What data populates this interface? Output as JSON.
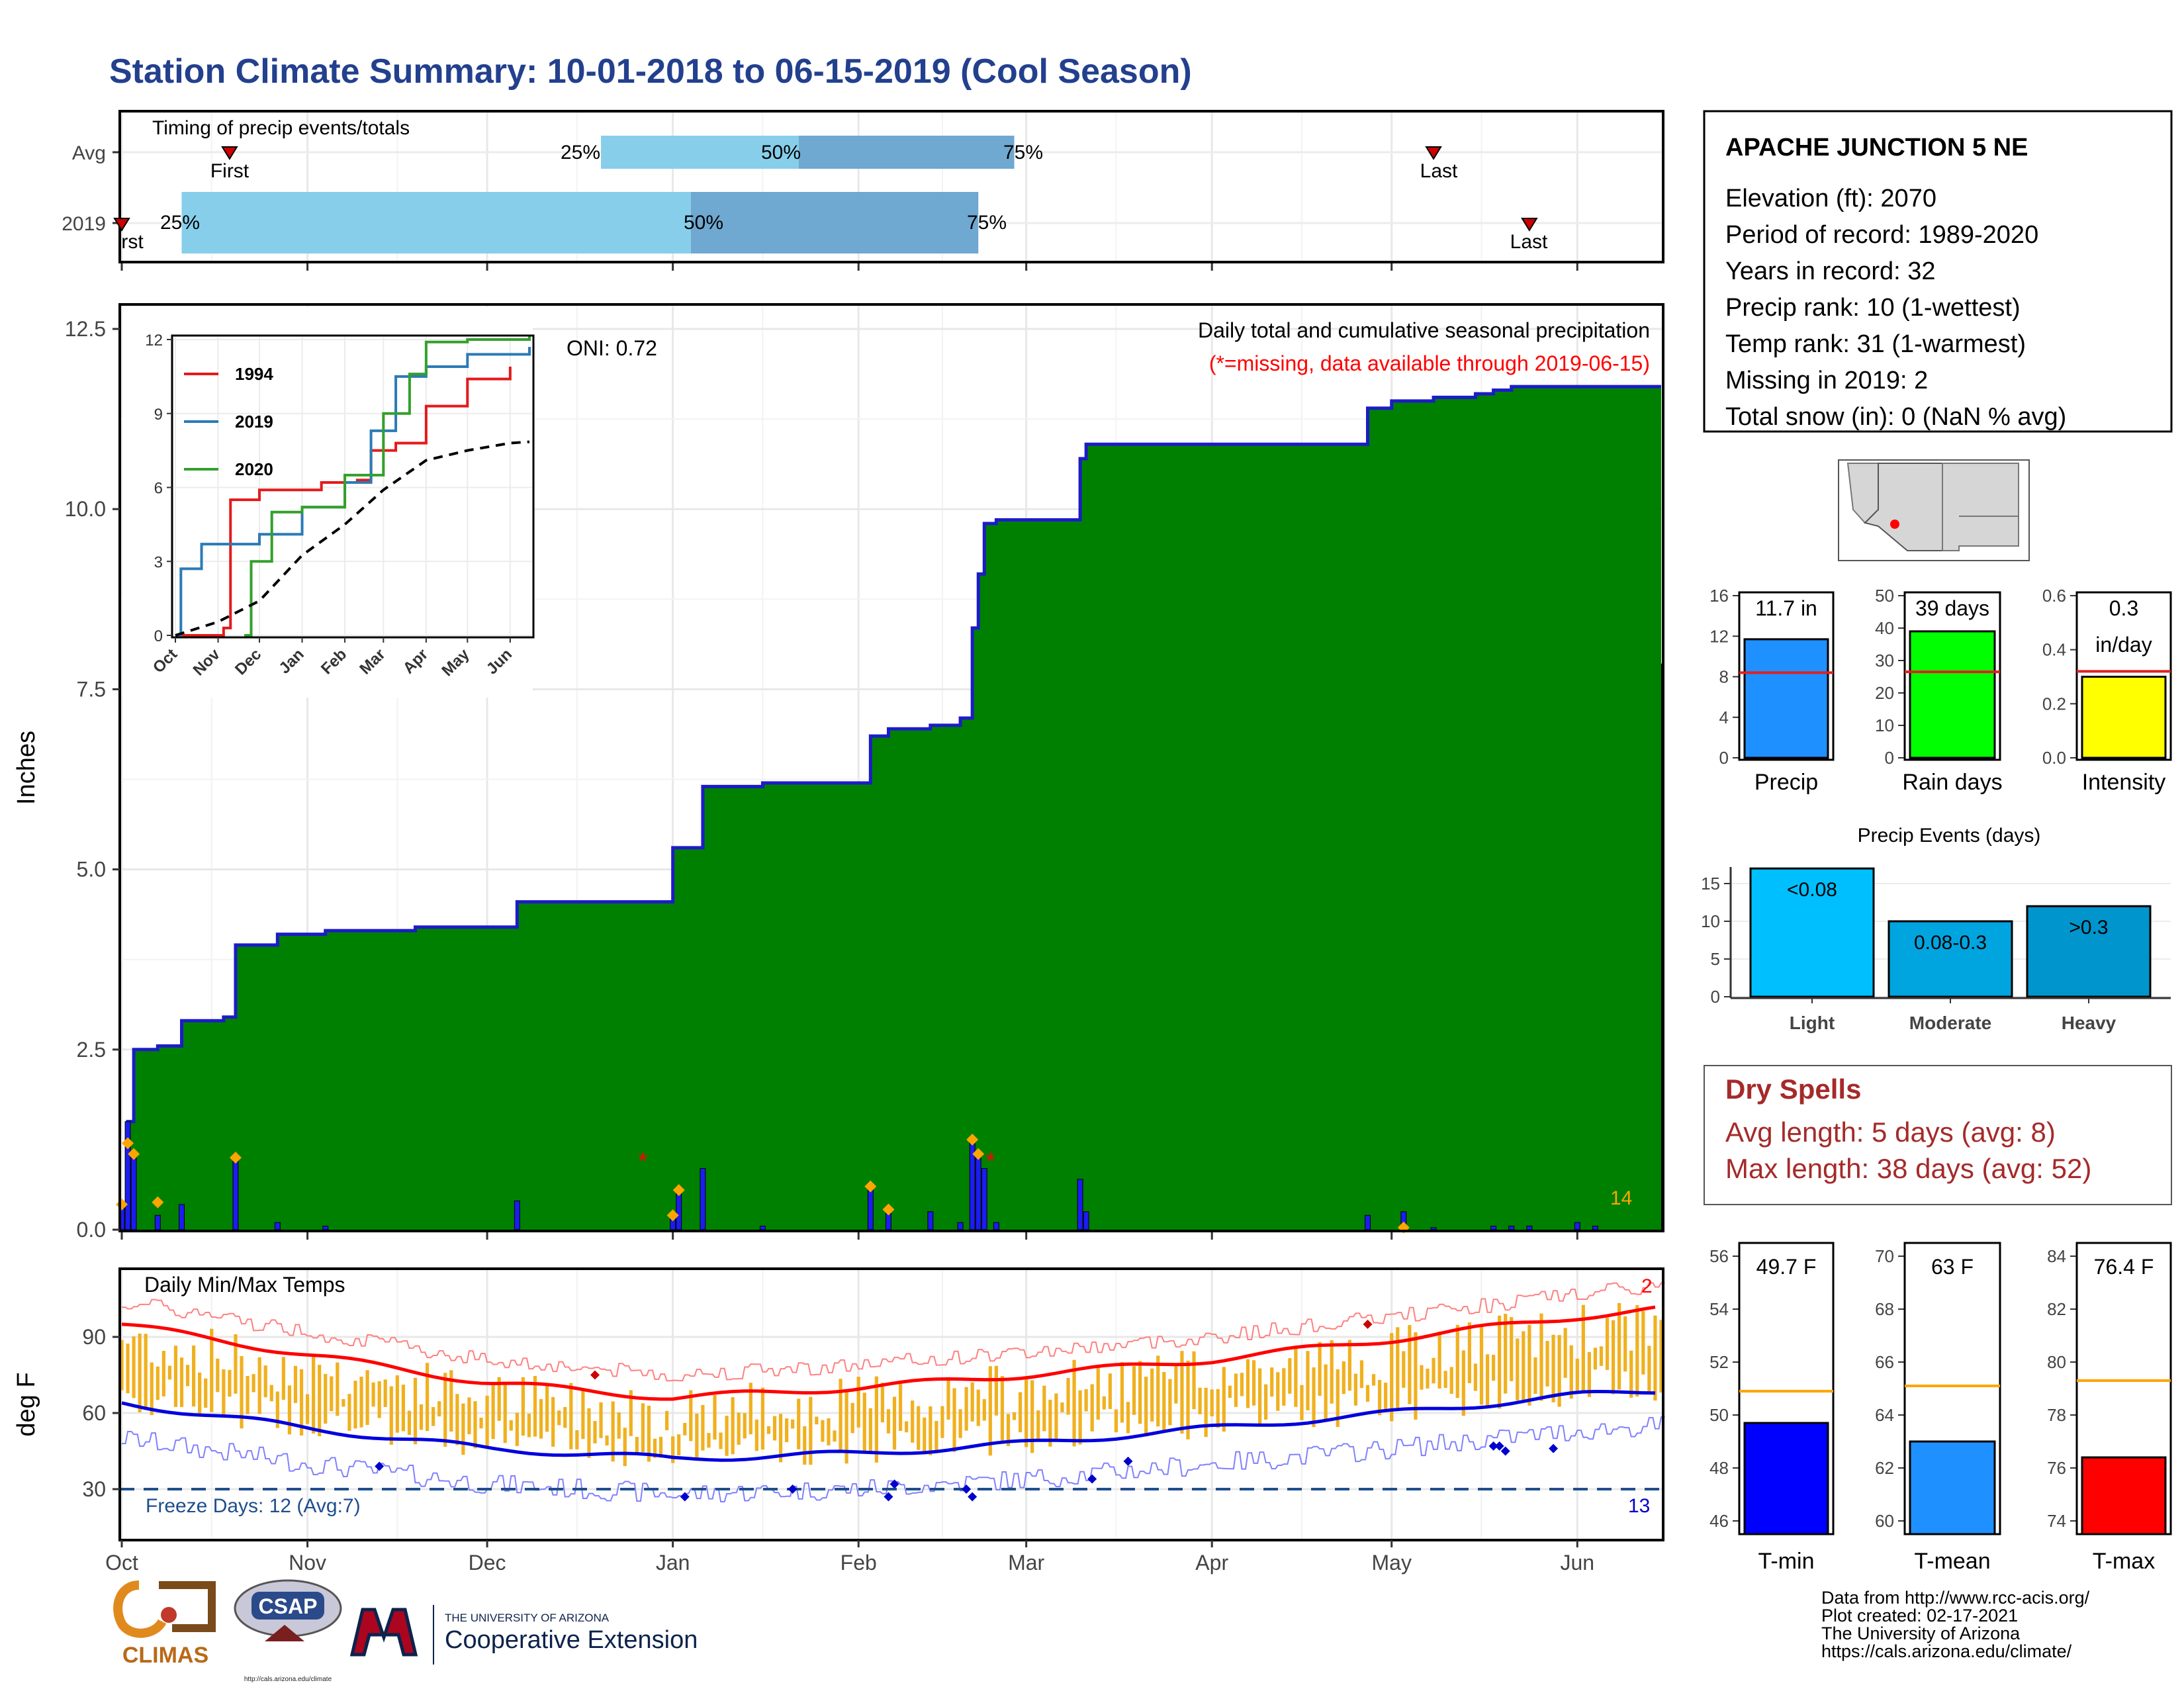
{
  "page_title": "Station Climate Summary: 10-01-2018 to 06-15-2019 (Cool Season)",
  "colors": {
    "title": "#23408e",
    "precip_fill": "#008000",
    "climo_fill": "#e0e0e0",
    "cumulative_line": "#1c1cc8",
    "daily_bar": "#1c1cf0",
    "quartile_light": "#87ceeb",
    "quartile_dark": "#6fa8d0",
    "temp_bar": "#f0b01f",
    "tmax_avg": "#ff0000",
    "tmin_avg": "#0000dd",
    "dry_spells": "#a52a2a",
    "tmin_bar": "#0000ff",
    "tmean_bar": "#1e90ff",
    "tmax_bar": "#ff0000",
    "light_bar": "#00bfff",
    "moderate_bar": "#00a5e0",
    "heavy_bar": "#0095cc"
  },
  "timing": {
    "title": "Timing of precip events/totals",
    "rows": [
      "Avg",
      "2019"
    ],
    "avg": {
      "first": "First",
      "last": "Last",
      "q25": "25%",
      "q50": "50%",
      "q75": "75%"
    },
    "y2019": {
      "first": "rst",
      "last": "Last",
      "q25": "25%",
      "q50": "50%",
      "q75": "75%"
    }
  },
  "months": [
    "Oct",
    "Nov",
    "Dec",
    "Jan",
    "Feb",
    "Mar",
    "Apr",
    "May",
    "Jun"
  ],
  "precip_panel": {
    "ylabel": "Inches",
    "yticks": [
      "0.0",
      "2.5",
      "5.0",
      "7.5",
      "10.0",
      "12.5"
    ],
    "title": "Daily total and cumulative seasonal precipitation",
    "missing_note": "(*=missing, data available through 2019-06-15)",
    "oni": "ONI: 0.72",
    "count": "14"
  },
  "inset": {
    "yticks": [
      "0",
      "3",
      "6",
      "9",
      "12"
    ],
    "months": [
      "Oct",
      "Nov",
      "Dec",
      "Jan",
      "Feb",
      "Mar",
      "Apr",
      "May",
      "Jun"
    ],
    "legend": [
      {
        "name": "1994",
        "color": "#e31a1c"
      },
      {
        "name": "2019",
        "color": "#2c7bb6"
      },
      {
        "name": "2020",
        "color": "#33a02c"
      }
    ]
  },
  "temp_panel": {
    "ylabel": "deg F",
    "title": "Daily Min/Max Temps",
    "yticks": [
      "30",
      "60",
      "90"
    ],
    "freeze": "Freeze Days: 12 (Avg:7)",
    "cold_count": "13",
    "hot_count": "2"
  },
  "station": {
    "name": "APACHE JUNCTION 5 NE",
    "lines": [
      "Elevation (ft): 2070",
      "Period of record: 1989-2020",
      "Years in record: 32",
      "Precip rank: 10 (1-wettest)",
      "Temp rank: 31 (1-warmest)",
      "Missing in 2019: 2",
      "Total snow (in): 0 (NaN % avg)"
    ]
  },
  "summary_bars": [
    {
      "label": "Precip",
      "value_text": "11.7 in",
      "yticks": [
        "0",
        "4",
        "8",
        "12",
        "16"
      ],
      "color": "#1e90ff"
    },
    {
      "label": "Rain days",
      "value_text": "39 days",
      "yticks": [
        "0",
        "10",
        "20",
        "30",
        "40",
        "50"
      ],
      "color": "#00ff00"
    },
    {
      "label": "Intensity",
      "value_text": "0.3",
      "value_text2": "in/day",
      "yticks": [
        "0.0",
        "0.2",
        "0.4",
        "0.6"
      ],
      "color": "#ffff00"
    }
  ],
  "events": {
    "title": "Precip Events (days)",
    "yticks": [
      "0",
      "5",
      "10",
      "15"
    ],
    "bars": [
      {
        "label": "Light",
        "text": "<0.08"
      },
      {
        "label": "Moderate",
        "text": "0.08-0.3"
      },
      {
        "label": "Heavy",
        "text": ">0.3"
      }
    ]
  },
  "dry_spells": {
    "title": "Dry Spells",
    "avg": "Avg length: 5 days (avg: 8)",
    "max": "Max length: 38 days (avg: 52)"
  },
  "temp_bars": [
    {
      "label": "T-min",
      "value_text": "49.7 F",
      "yticks": [
        "46",
        "48",
        "50",
        "52",
        "54",
        "56"
      ]
    },
    {
      "label": "T-mean",
      "value_text": "63 F",
      "yticks": [
        "60",
        "62",
        "64",
        "66",
        "68",
        "70"
      ]
    },
    {
      "label": "T-max",
      "value_text": "76.4 F",
      "yticks": [
        "74",
        "76",
        "78",
        "80",
        "82",
        "84"
      ]
    }
  ],
  "footer": {
    "credits": [
      "Data from http://www.rcc-acis.org/",
      "Plot created: 02-17-2021",
      "The University of Arizona",
      "https://cals.arizona.edu/climate/"
    ],
    "climas": "CLIMAS",
    "csap": "CSAP",
    "csap_url": "http://cals.arizona.edu/climate",
    "ua_small": "THE UNIVERSITY OF ARIZONA",
    "ua_big": "Cooperative Extension"
  },
  "chart_data": [
    {
      "type": "bar",
      "title": "Timing of precip events/totals",
      "categories": [
        "Avg",
        "2019"
      ],
      "series": [
        {
          "name": "25%",
          "values": [
            "2018-12-20",
            "2018-10-11"
          ]
        },
        {
          "name": "50%",
          "values": [
            "2019-01-22",
            "2019-01-04"
          ]
        },
        {
          "name": "75%",
          "values": [
            "2019-02-27",
            "2019-02-21"
          ]
        },
        {
          "name": "First",
          "values": [
            "2018-10-19",
            "2018-10-01"
          ]
        },
        {
          "name": "Last",
          "values": [
            "2019-05-08",
            "2019-05-24"
          ]
        }
      ]
    },
    {
      "type": "area",
      "title": "Daily total and cumulative seasonal precipitation",
      "ylabel": "Inches",
      "ylim": [
        0,
        12.5
      ],
      "series": [
        {
          "name": "cumulative",
          "points": [
            [
              "2018-10-01",
              0
            ],
            [
              "2018-10-02",
              1.5
            ],
            [
              "2018-10-03",
              2.5
            ],
            [
              "2018-10-07",
              2.55
            ],
            [
              "2018-10-11",
              2.9
            ],
            [
              "2018-10-18",
              2.95
            ],
            [
              "2018-10-20",
              3.95
            ],
            [
              "2018-10-27",
              4.1
            ],
            [
              "2018-11-04",
              4.15
            ],
            [
              "2018-11-19",
              4.2
            ],
            [
              "2018-12-01",
              4.2
            ],
            [
              "2018-12-06",
              4.55
            ],
            [
              "2018-12-29",
              4.55
            ],
            [
              "2019-01-01",
              5.3
            ],
            [
              "2019-01-06",
              6.15
            ],
            [
              "2019-01-16",
              6.2
            ],
            [
              "2019-01-31",
              6.2
            ],
            [
              "2019-02-03",
              6.85
            ],
            [
              "2019-02-06",
              6.95
            ],
            [
              "2019-02-13",
              7.0
            ],
            [
              "2019-02-18",
              7.1
            ],
            [
              "2019-02-20",
              8.35
            ],
            [
              "2019-02-21",
              9.1
            ],
            [
              "2019-02-22",
              9.8
            ],
            [
              "2019-02-24",
              9.85
            ],
            [
              "2019-03-10",
              10.7
            ],
            [
              "2019-03-11",
              10.9
            ],
            [
              "2019-04-24",
              10.9
            ],
            [
              "2019-04-27",
              11.4
            ],
            [
              "2019-05-01",
              11.5
            ],
            [
              "2019-05-08",
              11.55
            ],
            [
              "2019-05-15",
              11.6
            ],
            [
              "2019-05-18",
              11.65
            ],
            [
              "2019-05-21",
              11.7
            ],
            [
              "2019-06-15",
              11.7
            ]
          ]
        },
        {
          "name": "average cumulative",
          "points": [
            [
              "2018-10-01",
              0
            ],
            [
              "2018-11-01",
              0.55
            ],
            [
              "2018-12-01",
              1.4
            ],
            [
              "2019-01-01",
              3.25
            ],
            [
              "2019-02-01",
              4.5
            ],
            [
              "2019-03-01",
              5.9
            ],
            [
              "2019-04-01",
              7.1
            ],
            [
              "2019-05-01",
              7.5
            ],
            [
              "2019-06-01",
              7.75
            ],
            [
              "2019-06-15",
              7.85
            ]
          ]
        }
      ]
    },
    {
      "type": "bar",
      "title": "Daily precipitation",
      "ylabel": "Inches",
      "points": [
        [
          "2018-10-01",
          0.35
        ],
        [
          "2018-10-02",
          1.5
        ],
        [
          "2018-10-03",
          1.0
        ],
        [
          "2018-10-07",
          0.2
        ],
        [
          "2018-10-11",
          0.35
        ],
        [
          "2018-10-20",
          1.0
        ],
        [
          "2018-10-27",
          0.1
        ],
        [
          "2018-11-04",
          0.05
        ],
        [
          "2018-12-06",
          0.4
        ],
        [
          "2019-01-01",
          0.2
        ],
        [
          "2019-01-02",
          0.55
        ],
        [
          "2019-01-06",
          0.85
        ],
        [
          "2019-01-16",
          0.05
        ],
        [
          "2019-02-03",
          0.6
        ],
        [
          "2019-02-06",
          0.25
        ],
        [
          "2019-02-13",
          0.25
        ],
        [
          "2019-02-18",
          0.1
        ],
        [
          "2019-02-20",
          1.2
        ],
        [
          "2019-02-21",
          1.0
        ],
        [
          "2019-02-22",
          0.85
        ],
        [
          "2019-02-24",
          0.1
        ],
        [
          "2019-03-10",
          0.7
        ],
        [
          "2019-03-11",
          0.25
        ],
        [
          "2019-04-27",
          0.2
        ],
        [
          "2019-05-03",
          0.25
        ],
        [
          "2019-05-08",
          0.03
        ],
        [
          "2019-05-18",
          0.05
        ],
        [
          "2019-05-21",
          0.05
        ],
        [
          "2019-05-24",
          0.05
        ],
        [
          "2019-06-01",
          0.1
        ],
        [
          "2019-06-04",
          0.05
        ]
      ]
    },
    {
      "type": "line",
      "title": "Cumulative precipitation inset",
      "ylim": [
        0,
        12
      ],
      "series": [
        {
          "name": "1994",
          "points": [
            [
              "2018-10-01",
              0
            ],
            [
              "2018-11-05",
              0.3
            ],
            [
              "2018-11-10",
              5.5
            ],
            [
              "2018-12-01",
              5.9
            ],
            [
              "2019-01-15",
              6.2
            ],
            [
              "2019-02-10",
              6.3
            ],
            [
              "2019-02-20",
              7.5
            ],
            [
              "2019-03-10",
              7.8
            ],
            [
              "2019-04-01",
              9.3
            ],
            [
              "2019-05-01",
              10.4
            ],
            [
              "2019-06-01",
              10.9
            ]
          ]
        },
        {
          "name": "2019",
          "points": [
            [
              "2018-10-01",
              0
            ],
            [
              "2018-10-05",
              2.7
            ],
            [
              "2018-10-20",
              3.7
            ],
            [
              "2018-12-01",
              4.1
            ],
            [
              "2019-01-01",
              5.2
            ],
            [
              "2019-02-01",
              6.2
            ],
            [
              "2019-02-20",
              8.3
            ],
            [
              "2019-03-10",
              10.5
            ],
            [
              "2019-04-01",
              10.9
            ],
            [
              "2019-05-01",
              11.4
            ],
            [
              "2019-06-15",
              11.7
            ]
          ]
        },
        {
          "name": "2020",
          "points": [
            [
              "2018-11-20",
              0
            ],
            [
              "2018-11-25",
              3.0
            ],
            [
              "2018-12-10",
              5.0
            ],
            [
              "2019-01-01",
              5.2
            ],
            [
              "2019-02-01",
              6.5
            ],
            [
              "2019-03-01",
              9.0
            ],
            [
              "2019-03-20",
              10.6
            ],
            [
              "2019-04-01",
              11.9
            ],
            [
              "2019-05-01",
              12.0
            ],
            [
              "2019-06-15",
              12.2
            ]
          ]
        },
        {
          "name": "average",
          "points": [
            [
              "2018-10-01",
              0
            ],
            [
              "2018-11-01",
              0.55
            ],
            [
              "2018-12-01",
              1.4
            ],
            [
              "2019-01-01",
              3.25
            ],
            [
              "2019-02-01",
              4.5
            ],
            [
              "2019-03-01",
              5.9
            ],
            [
              "2019-04-01",
              7.1
            ],
            [
              "2019-05-01",
              7.5
            ],
            [
              "2019-06-01",
              7.8
            ],
            [
              "2019-06-15",
              7.85
            ]
          ]
        }
      ]
    },
    {
      "type": "line",
      "title": "Daily Min/Max Temps",
      "ylabel": "deg F",
      "series": [
        {
          "name": "avg max",
          "points": [
            [
              "2018-10-01",
              95
            ],
            [
              "2018-11-01",
              83
            ],
            [
              "2018-12-01",
              72
            ],
            [
              "2019-01-01",
              66
            ],
            [
              "2019-02-01",
              70
            ],
            [
              "2019-03-01",
              75
            ],
            [
              "2019-04-01",
              81
            ],
            [
              "2019-05-01",
              89
            ],
            [
              "2019-06-01",
              98
            ],
            [
              "2019-06-15",
              101
            ]
          ]
        },
        {
          "name": "avg min",
          "points": [
            [
              "2018-10-01",
              64
            ],
            [
              "2018-11-01",
              54
            ],
            [
              "2018-12-01",
              46
            ],
            [
              "2019-01-01",
              42
            ],
            [
              "2019-02-01",
              44
            ],
            [
              "2019-03-01",
              48
            ],
            [
              "2019-04-01",
              54
            ],
            [
              "2019-05-01",
              60
            ],
            [
              "2019-06-01",
              67
            ],
            [
              "2019-06-15",
              69
            ]
          ]
        }
      ]
    },
    {
      "type": "bar",
      "title": "Season summary",
      "categories": [
        "Precip",
        "Rain days",
        "Intensity"
      ],
      "series": [
        {
          "name": "observed",
          "values": [
            11.7,
            39,
            0.3
          ]
        },
        {
          "name": "average",
          "values": [
            8.4,
            26.5,
            0.32
          ]
        }
      ]
    },
    {
      "type": "bar",
      "title": "Precip Events (days)",
      "categories": [
        "Light",
        "Moderate",
        "Heavy"
      ],
      "values": [
        17,
        10,
        12
      ],
      "ylim": [
        0,
        17
      ]
    },
    {
      "type": "bar",
      "title": "Temperature summary",
      "categories": [
        "T-min",
        "T-mean",
        "T-max"
      ],
      "series": [
        {
          "name": "observed",
          "values": [
            49.7,
            63,
            76.4
          ]
        },
        {
          "name": "average",
          "values": [
            50.9,
            65.1,
            79.3
          ]
        }
      ]
    }
  ]
}
